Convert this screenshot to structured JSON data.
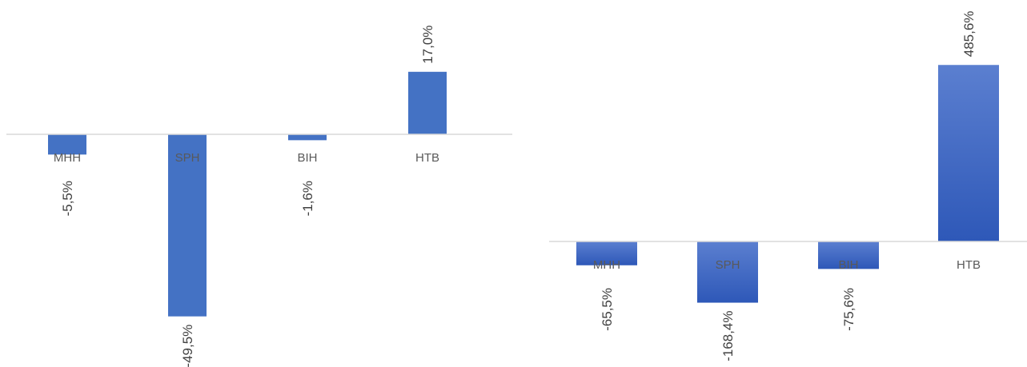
{
  "chart_data": [
    {
      "type": "bar",
      "categories": [
        "MHH",
        "SPH",
        "BIH",
        "HTB"
      ],
      "values": [
        -5.5,
        -49.5,
        -1.6,
        17.0
      ],
      "data_labels": [
        "-5,5%",
        "-49,5%",
        "-1,6%",
        "17,0%"
      ],
      "grid": false,
      "legend": "none",
      "colors": {
        "bar": "#4472C4",
        "axis": "#D9D9D9"
      }
    },
    {
      "type": "bar",
      "categories": [
        "MHH",
        "SPH",
        "BIH",
        "HTB"
      ],
      "values": [
        -65.5,
        -168.4,
        -75.6,
        485.6
      ],
      "data_labels": [
        "-65,5%",
        "-168,4%",
        "-75,6%",
        "485,6%"
      ],
      "grid": false,
      "legend": "none",
      "colors": {
        "bar_top": "#5B7FD0",
        "bar_bottom": "#2E58B8",
        "axis": "#D9D9D9"
      }
    }
  ]
}
